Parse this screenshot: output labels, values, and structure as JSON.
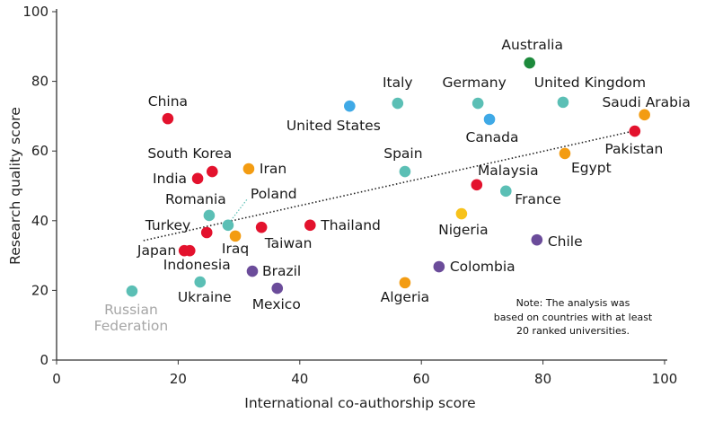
{
  "chart_data": {
    "type": "scatter",
    "xlabel": "International co-authorship score",
    "ylabel": "Research quality score",
    "xlim": [
      0,
      100
    ],
    "ylim": [
      0,
      100
    ],
    "xticks": [
      "0",
      "20",
      "40",
      "60",
      "80",
      "100"
    ],
    "yticks": [
      "0",
      "20",
      "40",
      "60",
      "80",
      "100"
    ],
    "grid": false,
    "trendline": {
      "style": "dotted",
      "x": [
        14.3,
        94.8
      ],
      "y": [
        34.3,
        65.7
      ]
    },
    "note": [
      "Note: The analysis was",
      "based on countries with at least",
      "20 ranked universities."
    ],
    "colors": {
      "red": "#e3122d",
      "teal": "#5bbfb5",
      "blue": "#3fa9e6",
      "orange": "#f39c12",
      "green": "#1d8a3c",
      "purple": "#6b4c9a",
      "yellow": "#f7c21b",
      "gray": "#5bbfb5"
    },
    "points": [
      {
        "name": "Australia",
        "x": 77.8,
        "y": 85.3,
        "color": "green"
      },
      {
        "name": "China",
        "x": 18.3,
        "y": 69.3,
        "color": "red"
      },
      {
        "name": "United States",
        "x": 48.2,
        "y": 72.9,
        "color": "blue"
      },
      {
        "name": "Italy",
        "x": 56.1,
        "y": 73.7,
        "color": "teal"
      },
      {
        "name": "Germany",
        "x": 69.3,
        "y": 73.7,
        "color": "teal"
      },
      {
        "name": "United Kingdom",
        "x": 83.3,
        "y": 74.0,
        "color": "teal"
      },
      {
        "name": "Canada",
        "x": 71.2,
        "y": 69.1,
        "color": "blue"
      },
      {
        "name": "Saudi Arabia",
        "x": 96.7,
        "y": 70.4,
        "color": "orange"
      },
      {
        "name": "Pakistan",
        "x": 95.1,
        "y": 65.7,
        "color": "red"
      },
      {
        "name": "Egypt",
        "x": 83.6,
        "y": 59.3,
        "color": "orange"
      },
      {
        "name": "South Korea",
        "x": 25.6,
        "y": 54.1,
        "color": "red"
      },
      {
        "name": "India",
        "x": 23.2,
        "y": 52.1,
        "color": "red"
      },
      {
        "name": "Iran",
        "x": 31.6,
        "y": 54.9,
        "color": "orange"
      },
      {
        "name": "Spain",
        "x": 57.3,
        "y": 54.1,
        "color": "teal"
      },
      {
        "name": "Malaysia",
        "x": 69.1,
        "y": 50.3,
        "color": "red"
      },
      {
        "name": "France",
        "x": 73.9,
        "y": 48.5,
        "color": "teal"
      },
      {
        "name": "Romania",
        "x": 25.1,
        "y": 41.5,
        "color": "teal"
      },
      {
        "name": "Poland",
        "x": 28.2,
        "y": 38.7,
        "color": "teal"
      },
      {
        "name": "Turkey",
        "x": 24.7,
        "y": 36.6,
        "color": "red"
      },
      {
        "name": "Taiwan",
        "x": 33.7,
        "y": 38.1,
        "color": "red"
      },
      {
        "name": "Thailand",
        "x": 41.7,
        "y": 38.7,
        "color": "red"
      },
      {
        "name": "Iraq",
        "x": 29.4,
        "y": 35.6,
        "color": "orange"
      },
      {
        "name": "Nigeria",
        "x": 66.6,
        "y": 42.0,
        "color": "yellow"
      },
      {
        "name": "Chile",
        "x": 79.0,
        "y": 34.5,
        "color": "purple"
      },
      {
        "name": "Japan",
        "x": 21.0,
        "y": 31.4,
        "color": "red"
      },
      {
        "name": "Indonesia",
        "x": 21.9,
        "y": 31.4,
        "color": "red"
      },
      {
        "name": "Brazil",
        "x": 32.2,
        "y": 25.5,
        "color": "purple"
      },
      {
        "name": "Colombia",
        "x": 62.9,
        "y": 26.8,
        "color": "purple"
      },
      {
        "name": "Ukraine",
        "x": 23.6,
        "y": 22.4,
        "color": "teal"
      },
      {
        "name": "Mexico",
        "x": 36.3,
        "y": 20.6,
        "color": "purple"
      },
      {
        "name": "Algeria",
        "x": 57.3,
        "y": 22.2,
        "color": "orange"
      },
      {
        "name": "Russian Federation",
        "x": 12.4,
        "y": 19.8,
        "color": "teal",
        "label_lines": [
          "Russian",
          "Federation"
        ],
        "label_color": "#a6a6a6"
      }
    ]
  }
}
